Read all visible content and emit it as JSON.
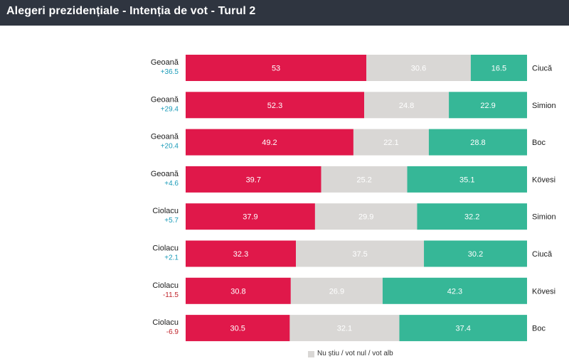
{
  "header": {
    "title": "Alegeri prezidențiale - Intenția de vot - Turul 2"
  },
  "colors": {
    "left": "#e0184a",
    "middle": "#d9d7d5",
    "right": "#36b797",
    "positive": "#1a9bb8",
    "negative": "#c0242b",
    "header_bg": "#2f3540"
  },
  "legend": {
    "label": "Nu știu / vot nul / vot alb"
  },
  "chart_data": {
    "type": "bar",
    "orientation": "horizontal",
    "stacked": true,
    "title": "Alegeri prezidențiale - Intenția de vot - Turul 2",
    "rows": [
      {
        "left_name": "Geoană",
        "margin": "+36.5",
        "right_name": "Ciucă",
        "values": [
          53,
          30.6,
          16.5
        ]
      },
      {
        "left_name": "Geoană",
        "margin": "+29.4",
        "right_name": "Simion",
        "values": [
          52.3,
          24.8,
          22.9
        ]
      },
      {
        "left_name": "Geoană",
        "margin": "+20.4",
        "right_name": "Boc",
        "values": [
          49.2,
          22.1,
          28.8
        ]
      },
      {
        "left_name": "Geoană",
        "margin": "+4.6",
        "right_name": "Kövesi",
        "values": [
          39.7,
          25.2,
          35.1
        ]
      },
      {
        "left_name": "Ciolacu",
        "margin": "+5.7",
        "right_name": "Simion",
        "values": [
          37.9,
          29.9,
          32.2
        ]
      },
      {
        "left_name": "Ciolacu",
        "margin": "+2.1",
        "right_name": "Ciucă",
        "values": [
          32.3,
          37.5,
          30.2
        ]
      },
      {
        "left_name": "Ciolacu",
        "margin": "-11.5",
        "right_name": "Kövesi",
        "values": [
          30.8,
          26.9,
          42.3
        ]
      },
      {
        "left_name": "Ciolacu",
        "margin": "-6.9",
        "right_name": "Boc",
        "values": [
          30.5,
          32.1,
          37.4
        ]
      }
    ],
    "legend_position": "bottom"
  }
}
